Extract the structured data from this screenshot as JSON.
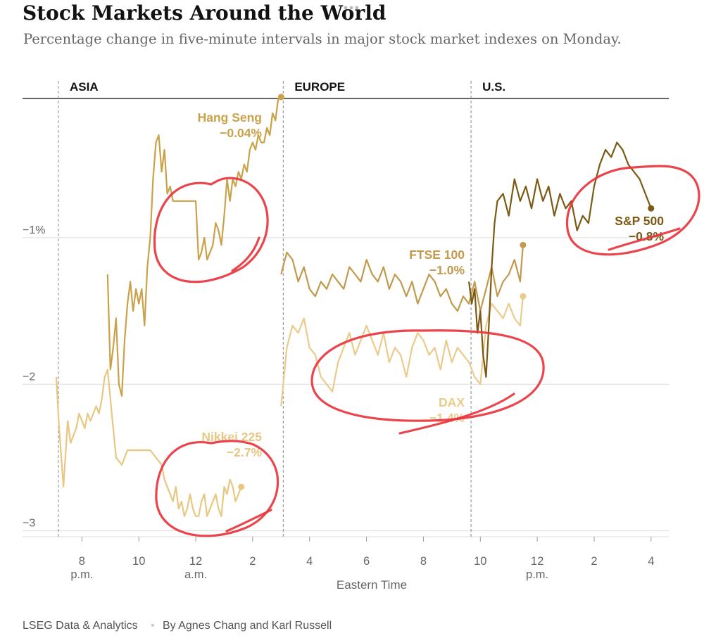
{
  "chart_data": {
    "type": "line",
    "title": "Stock Markets Around the World",
    "subtitle": "Percentage change in five-minute intervals in major stock market indexes on Monday.",
    "xlabel": "Eastern Time",
    "ylabel": "",
    "ylim": [
      -3.05,
      -0.05
    ],
    "grid": true,
    "x_range_hours": [
      7.1,
      28.5
    ],
    "x_ticks": [
      {
        "h": 8,
        "label": "8",
        "sub": "p.m."
      },
      {
        "h": 10,
        "label": "10",
        "sub": ""
      },
      {
        "h": 12,
        "label": "12",
        "sub": "a.m."
      },
      {
        "h": 14,
        "label": "2",
        "sub": ""
      },
      {
        "h": 16,
        "label": "4",
        "sub": ""
      },
      {
        "h": 18,
        "label": "6",
        "sub": ""
      },
      {
        "h": 20,
        "label": "8",
        "sub": ""
      },
      {
        "h": 22,
        "label": "10",
        "sub": ""
      },
      {
        "h": 24,
        "label": "12",
        "sub": "p.m."
      },
      {
        "h": 26,
        "label": "2",
        "sub": ""
      },
      {
        "h": 28,
        "label": "4",
        "sub": ""
      }
    ],
    "y_ticks": [
      {
        "v": -1,
        "label": "−1%"
      },
      {
        "v": -2,
        "label": "−2"
      },
      {
        "v": -3,
        "label": "−3"
      }
    ],
    "regions": [
      {
        "name": "ASIA",
        "start_h": 7.1
      },
      {
        "name": "EUROPE",
        "start_h": 15.0
      },
      {
        "name": "U.S.",
        "start_h": 21.6
      }
    ],
    "series": [
      {
        "name": "Hang Seng",
        "value_label": "−0.04%",
        "color": "#c9a24a",
        "x": [
          8.9,
          9.0,
          9.1,
          9.2,
          9.3,
          9.4,
          9.5,
          9.6,
          9.7,
          9.8,
          9.9,
          10.0,
          10.1,
          10.2,
          10.3,
          10.4,
          10.5,
          10.6,
          10.7,
          10.8,
          10.9,
          11.0,
          11.1,
          11.2,
          11.5,
          11.8,
          12.0,
          12.1,
          12.2,
          12.3,
          12.4,
          12.5,
          12.6,
          12.7,
          12.8,
          12.9,
          13.0,
          13.1,
          13.2,
          13.3,
          13.4,
          13.5,
          13.6,
          13.7,
          13.8,
          13.9,
          14.0,
          14.1,
          14.2,
          14.3,
          14.4,
          14.5,
          14.6,
          14.7,
          14.8,
          14.9,
          15.0
        ],
        "y": [
          -1.25,
          -1.9,
          -1.75,
          -1.55,
          -2.0,
          -2.08,
          -1.7,
          -1.45,
          -1.3,
          -1.5,
          -1.35,
          -1.45,
          -1.35,
          -1.6,
          -1.2,
          -1.0,
          -0.6,
          -0.35,
          -0.3,
          -0.55,
          -0.4,
          -0.7,
          -0.65,
          -0.75,
          -0.75,
          -0.75,
          -0.75,
          -1.15,
          -1.1,
          -1.0,
          -1.15,
          -1.1,
          -1.05,
          -0.9,
          -0.95,
          -1.05,
          -0.85,
          -0.6,
          -0.75,
          -0.6,
          -0.65,
          -0.55,
          -0.6,
          -0.5,
          -0.55,
          -0.4,
          -0.35,
          -0.4,
          -0.3,
          -0.35,
          -0.35,
          -0.25,
          -0.3,
          -0.15,
          -0.2,
          -0.05,
          -0.04
        ],
        "end_dot": true
      },
      {
        "name": "Nikkei 225",
        "value_label": "−2.7%",
        "color": "#e8c782",
        "x": [
          7.1,
          7.2,
          7.35,
          7.5,
          7.6,
          7.7,
          7.8,
          7.9,
          8.0,
          8.1,
          8.2,
          8.3,
          8.4,
          8.5,
          8.6,
          8.7,
          8.8,
          8.9,
          9.0,
          9.1,
          9.2,
          9.4,
          9.5,
          9.6,
          9.8,
          10.0,
          10.2,
          10.4,
          10.6,
          10.8,
          10.9,
          11.0,
          11.1,
          11.2,
          11.3,
          11.4,
          11.5,
          11.6,
          11.7,
          11.8,
          11.9,
          12.0,
          12.1,
          12.2,
          12.3,
          12.4,
          12.5,
          12.6,
          12.7,
          12.8,
          12.9,
          13.0,
          13.1,
          13.2,
          13.3,
          13.4,
          13.5,
          13.6
        ],
        "y": [
          -1.95,
          -2.3,
          -2.7,
          -2.25,
          -2.4,
          -2.35,
          -2.3,
          -2.2,
          -2.25,
          -2.3,
          -2.2,
          -2.25,
          -2.2,
          -2.15,
          -2.2,
          -2.1,
          -1.95,
          -1.9,
          -2.1,
          -2.3,
          -2.5,
          -2.55,
          -2.5,
          -2.45,
          -2.45,
          -2.45,
          -2.45,
          -2.45,
          -2.5,
          -2.55,
          -2.65,
          -2.7,
          -2.75,
          -2.8,
          -2.7,
          -2.85,
          -2.8,
          -2.9,
          -2.85,
          -2.75,
          -2.85,
          -2.9,
          -2.9,
          -2.8,
          -2.75,
          -2.9,
          -2.85,
          -2.8,
          -2.75,
          -2.85,
          -2.9,
          -2.7,
          -2.75,
          -2.65,
          -2.7,
          -2.8,
          -2.75,
          -2.7
        ],
        "end_dot": true
      },
      {
        "name": "FTSE 100",
        "value_label": "−1.0%",
        "color": "#c19a4d",
        "x": [
          15.0,
          15.2,
          15.4,
          15.6,
          15.8,
          16.0,
          16.2,
          16.4,
          16.6,
          16.8,
          17.0,
          17.2,
          17.4,
          17.6,
          17.8,
          18.0,
          18.2,
          18.4,
          18.6,
          18.8,
          19.0,
          19.2,
          19.4,
          19.6,
          19.8,
          20.0,
          20.2,
          20.4,
          20.6,
          20.8,
          21.0,
          21.2,
          21.4,
          21.6,
          21.8,
          22.0,
          22.2,
          22.4,
          22.6,
          22.8,
          23.0,
          23.2,
          23.4,
          23.5
        ],
        "y": [
          -1.25,
          -1.1,
          -1.15,
          -1.3,
          -1.2,
          -1.35,
          -1.4,
          -1.3,
          -1.35,
          -1.25,
          -1.3,
          -1.35,
          -1.2,
          -1.25,
          -1.3,
          -1.15,
          -1.25,
          -1.3,
          -1.2,
          -1.35,
          -1.25,
          -1.3,
          -1.4,
          -1.3,
          -1.45,
          -1.35,
          -1.25,
          -1.3,
          -1.4,
          -1.35,
          -1.45,
          -1.5,
          -1.4,
          -1.45,
          -1.3,
          -1.5,
          -1.35,
          -1.2,
          -1.4,
          -1.3,
          -1.25,
          -1.15,
          -1.3,
          -1.05
        ],
        "end_dot": true
      },
      {
        "name": "DAX",
        "value_label": "−1.4%",
        "color": "#ebcb8b",
        "x": [
          15.0,
          15.2,
          15.4,
          15.6,
          15.8,
          16.0,
          16.2,
          16.4,
          16.6,
          16.8,
          17.0,
          17.2,
          17.4,
          17.6,
          17.8,
          18.0,
          18.2,
          18.4,
          18.6,
          18.8,
          19.0,
          19.2,
          19.4,
          19.6,
          19.8,
          20.0,
          20.2,
          20.4,
          20.6,
          20.8,
          21.0,
          21.2,
          21.4,
          21.6,
          21.8,
          22.0,
          22.2,
          22.4,
          22.6,
          22.8,
          23.0,
          23.2,
          23.4,
          23.5
        ],
        "y": [
          -2.15,
          -1.75,
          -1.6,
          -1.65,
          -1.55,
          -1.75,
          -1.8,
          -1.95,
          -2.0,
          -2.05,
          -1.85,
          -1.75,
          -1.65,
          -1.8,
          -1.7,
          -1.6,
          -1.7,
          -1.8,
          -1.65,
          -1.85,
          -1.75,
          -1.8,
          -1.95,
          -1.75,
          -1.65,
          -1.7,
          -1.8,
          -1.75,
          -1.9,
          -1.7,
          -1.85,
          -1.75,
          -1.8,
          -1.85,
          -1.95,
          -2.0,
          -1.6,
          -1.45,
          -1.5,
          -1.55,
          -1.45,
          -1.55,
          -1.6,
          -1.4
        ],
        "end_dot": true
      },
      {
        "name": "S&P 500",
        "value_label": "−0.8%",
        "color": "#7a5a14",
        "x": [
          21.6,
          21.7,
          21.8,
          21.9,
          22.0,
          22.1,
          22.2,
          22.3,
          22.4,
          22.5,
          22.6,
          22.8,
          23.0,
          23.2,
          23.4,
          23.6,
          23.8,
          24.0,
          24.2,
          24.4,
          24.6,
          24.8,
          25.0,
          25.2,
          25.4,
          25.6,
          25.8,
          26.0,
          26.2,
          26.4,
          26.6,
          26.8,
          27.0,
          27.2,
          27.4,
          27.6,
          27.8,
          28.0
        ],
        "y": [
          -1.3,
          -1.45,
          -1.35,
          -1.65,
          -1.5,
          -1.8,
          -1.95,
          -1.6,
          -1.2,
          -0.9,
          -0.75,
          -0.7,
          -0.85,
          -0.6,
          -0.75,
          -0.65,
          -0.8,
          -0.6,
          -0.75,
          -0.65,
          -0.85,
          -0.7,
          -0.8,
          -0.75,
          -0.95,
          -0.85,
          -0.9,
          -0.65,
          -0.5,
          -0.4,
          -0.45,
          -0.35,
          -0.4,
          -0.5,
          -0.55,
          -0.6,
          -0.7,
          -0.8
        ],
        "end_dot": true
      }
    ]
  },
  "credit": {
    "source": "LSEG Data & Analytics",
    "separator": "•",
    "byline": "By Agnes Chang and Karl Russell"
  },
  "menu": {
    "icon": "more-dots-icon"
  },
  "annotations": {
    "description_color": "#e8353e"
  }
}
